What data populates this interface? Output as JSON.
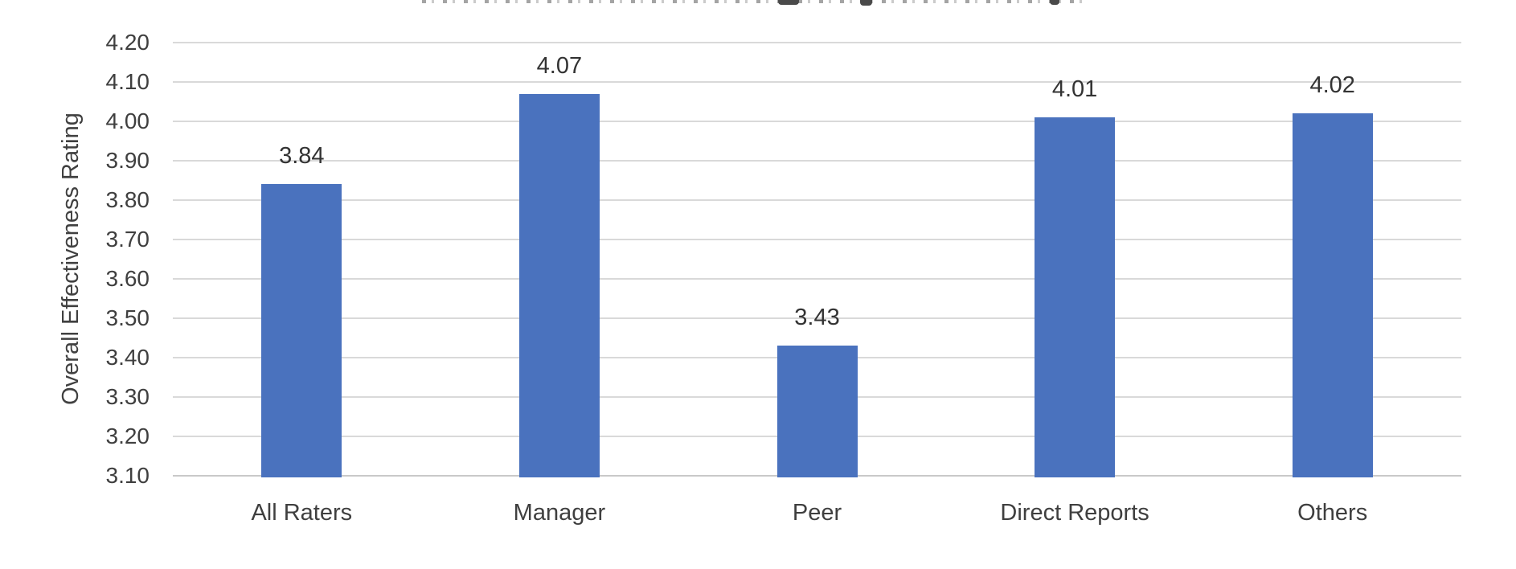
{
  "chart_data": {
    "type": "bar",
    "title": "",
    "title_clipped": true,
    "categories": [
      "All Raters",
      "Manager",
      "Peer",
      "Direct Reports",
      "Others"
    ],
    "values": [
      3.84,
      4.07,
      3.43,
      4.01,
      4.02
    ],
    "data_labels": [
      "3.84",
      "4.07",
      "3.43",
      "4.01",
      "4.02"
    ],
    "xlabel": "",
    "ylabel": "Overall Effectiveness Rating",
    "ylim": [
      3.1,
      4.2
    ],
    "ytick_step": 0.1,
    "yticks": [
      "4.20",
      "4.10",
      "4.00",
      "3.90",
      "3.80",
      "3.70",
      "3.60",
      "3.50",
      "3.40",
      "3.30",
      "3.20",
      "3.10"
    ],
    "grid": true,
    "legend": false,
    "bar_color": "#4a72be",
    "gridline_color": "#d9d9d9",
    "text_color": "#3f3f3f"
  }
}
